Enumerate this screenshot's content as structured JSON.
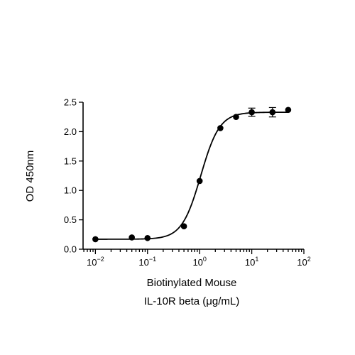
{
  "chart_data": {
    "type": "scatter",
    "title": "",
    "xlabel_lines": [
      "Biotinylated Mouse",
      "IL-10R beta (μg/mL)"
    ],
    "ylabel": "OD 450nm",
    "x_scale": "log",
    "xlim": [
      0.0058,
      100
    ],
    "ylim": [
      0,
      2.5
    ],
    "x_ticks": [
      {
        "value": 0.01,
        "base": "10",
        "exp": "-2"
      },
      {
        "value": 0.1,
        "base": "10",
        "exp": "-1"
      },
      {
        "value": 1,
        "base": "10",
        "exp": "0"
      },
      {
        "value": 10,
        "base": "10",
        "exp": "1"
      },
      {
        "value": 100,
        "base": "10",
        "exp": "2"
      }
    ],
    "y_ticks": [
      {
        "value": 0,
        "label": "0.0"
      },
      {
        "value": 0.5,
        "label": "0.5"
      },
      {
        "value": 1.0,
        "label": "1.0"
      },
      {
        "value": 1.5,
        "label": "1.5"
      },
      {
        "value": 2.0,
        "label": "2.0"
      },
      {
        "value": 2.5,
        "label": "2.5"
      }
    ],
    "grid": false,
    "series": [
      {
        "points": [
          {
            "x": 0.01,
            "y": 0.17,
            "err": 0
          },
          {
            "x": 0.05,
            "y": 0.2,
            "err": 0
          },
          {
            "x": 0.1,
            "y": 0.19,
            "err": 0
          },
          {
            "x": 0.5,
            "y": 0.39,
            "err": 0
          },
          {
            "x": 1,
            "y": 1.16,
            "err": 0
          },
          {
            "x": 2.5,
            "y": 2.06,
            "err": 0
          },
          {
            "x": 5,
            "y": 2.25,
            "err": 0
          },
          {
            "x": 10,
            "y": 2.33,
            "err": 0.07
          },
          {
            "x": 25,
            "y": 2.33,
            "err": 0.08
          },
          {
            "x": 50,
            "y": 2.37,
            "err": 0
          }
        ],
        "fit": {
          "model": "4PL",
          "bottom": 0.17,
          "top": 2.33,
          "ec50": 1.05,
          "hill": 2.4
        }
      }
    ]
  }
}
